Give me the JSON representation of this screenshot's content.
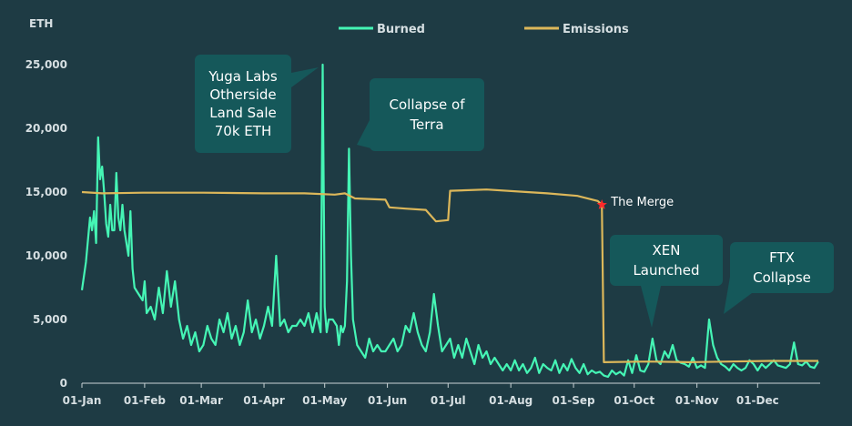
{
  "chart_data": {
    "type": "line",
    "y_label": "ETH",
    "xlim": [
      0,
      364
    ],
    "xticks": [
      {
        "value": 0,
        "label": "01-Jan"
      },
      {
        "value": 31,
        "label": "01-Feb"
      },
      {
        "value": 59,
        "label": "01-Mar"
      },
      {
        "value": 90,
        "label": "01-Apr"
      },
      {
        "value": 120,
        "label": "01-May"
      },
      {
        "value": 151,
        "label": "01-Jun"
      },
      {
        "value": 181,
        "label": "01-Jul"
      },
      {
        "value": 212,
        "label": "01-Aug"
      },
      {
        "value": 243,
        "label": "01-Sep"
      },
      {
        "value": 273,
        "label": "01-Oct"
      },
      {
        "value": 304,
        "label": "01-Nov"
      },
      {
        "value": 334,
        "label": "01-Dec"
      }
    ],
    "ylim": [
      0,
      25000
    ],
    "yticks": [
      0,
      {
        "value": 5000,
        "label": "5,000"
      },
      {
        "value": 10000,
        "label": "10,000"
      },
      {
        "value": 15000,
        "label": "15,000"
      },
      {
        "value": 20000,
        "label": "20,000"
      },
      {
        "value": 25000,
        "label": "25,000"
      }
    ],
    "legend": "top",
    "series": [
      {
        "name": "Burned",
        "color": "#45f5b5",
        "x": [
          0,
          2,
          4,
          5,
          6,
          7,
          8,
          9,
          10,
          11,
          12,
          13,
          14,
          15,
          16,
          17,
          18,
          19,
          20,
          21,
          22,
          23,
          24,
          25,
          26,
          28,
          30,
          31,
          32,
          34,
          36,
          38,
          40,
          42,
          44,
          46,
          48,
          50,
          52,
          54,
          56,
          58,
          60,
          62,
          64,
          66,
          68,
          70,
          72,
          74,
          76,
          78,
          80,
          82,
          84,
          86,
          88,
          90,
          92,
          94,
          96,
          98,
          100,
          102,
          104,
          106,
          108,
          110,
          112,
          114,
          116,
          118,
          119,
          120,
          121,
          122,
          124,
          126,
          127,
          128,
          129,
          130,
          131,
          132,
          133,
          134,
          136,
          138,
          140,
          142,
          144,
          146,
          148,
          150,
          152,
          154,
          156,
          158,
          160,
          162,
          164,
          166,
          168,
          170,
          172,
          174,
          176,
          178,
          180,
          182,
          184,
          186,
          188,
          190,
          192,
          194,
          196,
          198,
          200,
          202,
          204,
          206,
          208,
          210,
          212,
          214,
          216,
          218,
          220,
          222,
          224,
          226,
          228,
          230,
          232,
          234,
          236,
          238,
          240,
          242,
          244,
          246,
          248,
          250,
          252,
          254,
          256,
          258,
          260,
          262,
          264,
          266,
          268,
          270,
          272,
          274,
          276,
          278,
          280,
          282,
          284,
          286,
          288,
          290,
          292,
          294,
          296,
          298,
          300,
          302,
          304,
          306,
          308,
          310,
          312,
          314,
          316,
          318,
          320,
          322,
          324,
          326,
          328,
          330,
          332,
          334,
          336,
          338,
          340,
          342,
          344,
          346,
          348,
          350,
          352,
          354,
          356,
          358,
          360,
          362,
          364
        ],
        "values": [
          7300,
          9500,
          13000,
          12000,
          13500,
          11000,
          19300,
          16000,
          17000,
          15000,
          12500,
          11500,
          14000,
          12000,
          12000,
          16500,
          13000,
          12000,
          14000,
          12000,
          11000,
          10000,
          13500,
          9000,
          7500,
          7000,
          6500,
          8000,
          5500,
          6000,
          5000,
          7500,
          5500,
          8800,
          6000,
          8000,
          5000,
          3500,
          4500,
          3000,
          4000,
          2500,
          3000,
          4500,
          3500,
          3000,
          5000,
          4000,
          5500,
          3500,
          4500,
          3000,
          4000,
          6500,
          4000,
          5000,
          3500,
          4500,
          6000,
          4500,
          10000,
          4500,
          5000,
          4000,
          4500,
          4500,
          5000,
          4500,
          5500,
          4000,
          5500,
          4000,
          25000,
          6000,
          4000,
          5000,
          5000,
          4500,
          3000,
          4500,
          4000,
          4500,
          8000,
          18400,
          10000,
          5000,
          3000,
          2500,
          2000,
          3500,
          2500,
          3000,
          2500,
          2500,
          3000,
          3500,
          2500,
          3000,
          4500,
          4000,
          5500,
          4000,
          3000,
          2500,
          4000,
          7000,
          4500,
          2500,
          3000,
          3500,
          2000,
          3000,
          2000,
          3500,
          2500,
          1500,
          3000,
          2000,
          2500,
          1500,
          2000,
          1500,
          1000,
          1500,
          1000,
          1800,
          1000,
          1500,
          800,
          1200,
          2000,
          800,
          1500,
          1200,
          1000,
          1800,
          800,
          1500,
          1000,
          1900,
          1200,
          800,
          1500,
          700,
          1000,
          800,
          900,
          600,
          500,
          1000,
          700,
          900,
          600,
          1800,
          800,
          2200,
          1000,
          900,
          1500,
          3500,
          1800,
          1500,
          2500,
          2000,
          3000,
          1800,
          1600,
          1500,
          1300,
          2000,
          1200,
          1400,
          1200,
          5000,
          3000,
          2000,
          1500,
          1300,
          1000,
          1500,
          1200,
          1000,
          1200,
          1800,
          1500,
          1000,
          1500,
          1200,
          1500,
          1800,
          1400,
          1300,
          1200,
          1500,
          3200,
          1500,
          1400,
          1700,
          1300,
          1200,
          1700
        ]
      },
      {
        "name": "Emissions",
        "color": "#dcb75a",
        "x": [
          0,
          10,
          30,
          60,
          90,
          110,
          125,
          130,
          135,
          150,
          152,
          160,
          170,
          175,
          181,
          182,
          200,
          220,
          230,
          245,
          255,
          257,
          258,
          280,
          300,
          320,
          340,
          364
        ],
        "values": [
          15000,
          14900,
          14950,
          14950,
          14900,
          14900,
          14800,
          14900,
          14500,
          14400,
          13800,
          13700,
          13600,
          12700,
          12800,
          15100,
          15200,
          15000,
          14900,
          14700,
          14300,
          14000,
          1650,
          1700,
          1650,
          1700,
          1750,
          1750
        ]
      }
    ],
    "annotations": [
      {
        "lines": [
          "Yuga Labs",
          "Otherside",
          "Land Sale",
          "70k ETH"
        ],
        "x": 119,
        "y": 25000
      },
      {
        "lines": [
          "Collapse of",
          "Terra"
        ],
        "x": 132,
        "y": 18400
      },
      {
        "lines": [
          "The Merge"
        ],
        "x": 257,
        "y": 14000
      },
      {
        "lines": [
          "XEN",
          "Launched"
        ],
        "x": 282,
        "y": 3500
      },
      {
        "lines": [
          "FTX",
          "Collapse"
        ],
        "x": 310,
        "y": 5000
      }
    ]
  }
}
